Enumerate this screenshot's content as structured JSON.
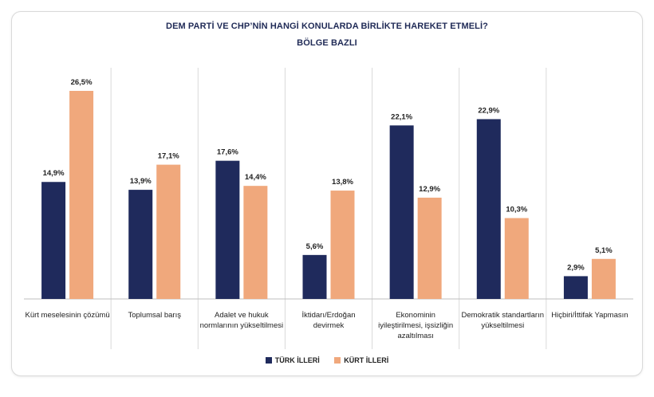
{
  "colors": {
    "series1": "#1f2a5c",
    "series2": "#f0a87c",
    "divider": "#d9d9d9",
    "baseline": "#bfbfbf"
  },
  "chart_data": {
    "type": "bar",
    "title": "DEM PARTİ VE CHP’NİN HANGİ KONULARDA BİRLİKTE HAREKET ETMELİ?",
    "subtitle": "BÖLGE BAZLI",
    "xlabel": "",
    "ylabel": "",
    "ylim": [
      0,
      30
    ],
    "grid": false,
    "legend_position": "bottom",
    "categories": [
      [
        "Kürt meselesinin çözümü"
      ],
      [
        "Toplumsal barış"
      ],
      [
        "Adalet ve hukuk",
        "normlarının yükseltilmesi"
      ],
      [
        "İktidarı/Erdoğan",
        "devirmek"
      ],
      [
        "Ekonominin",
        "iyileştirilmesi, işsizliğin",
        "azaltılması"
      ],
      [
        "Demokratik standartların",
        "yükseltilmesi"
      ],
      [
        "Hiçbiri/İttifak Yapmasın"
      ]
    ],
    "series": [
      {
        "name": "TÜRK İLLERİ",
        "values": [
          14.9,
          13.9,
          17.6,
          5.6,
          22.1,
          22.9,
          2.9
        ],
        "labels": [
          "14,9%",
          "13,9%",
          "17,6%",
          "5,6%",
          "22,1%",
          "22,9%",
          "2,9%"
        ]
      },
      {
        "name": "KÜRT İLLERİ",
        "values": [
          26.5,
          17.1,
          14.4,
          13.8,
          12.9,
          10.3,
          5.1
        ],
        "labels": [
          "26,5%",
          "17,1%",
          "14,4%",
          "13,8%",
          "12,9%",
          "10,3%",
          "5,1%"
        ]
      }
    ]
  }
}
